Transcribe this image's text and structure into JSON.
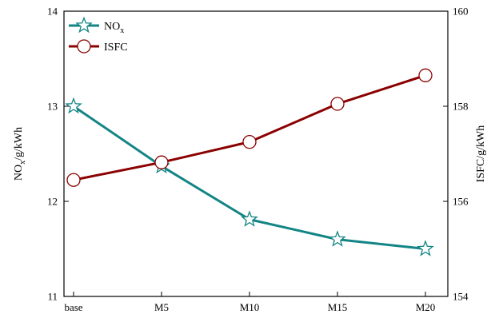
{
  "chart_data": {
    "type": "line",
    "categories": [
      "base",
      "M5",
      "M10",
      "M15",
      "M20"
    ],
    "left_axis": {
      "label_main": "NO",
      "label_sub": "x",
      "label_rest": "/g/kWh",
      "ylim": [
        11,
        14
      ],
      "ticks": [
        "11",
        "12",
        "13",
        "14"
      ]
    },
    "right_axis": {
      "label": "ISFC/g/kWh",
      "ylim": [
        154,
        160
      ],
      "ticks": [
        "154",
        "156",
        "158",
        "160"
      ]
    },
    "series": [
      {
        "name_main": "NO",
        "name_sub": "x",
        "axis": "left",
        "marker": "star",
        "color": "#138585",
        "values": [
          13.0,
          12.37,
          11.81,
          11.6,
          11.5
        ]
      },
      {
        "name_main": "ISFC",
        "name_sub": "",
        "axis": "right",
        "marker": "circle",
        "color": "#8b0000",
        "values": [
          156.45,
          156.82,
          157.25,
          158.05,
          158.65
        ]
      }
    ],
    "legend_position": "top-left",
    "grid": false
  }
}
